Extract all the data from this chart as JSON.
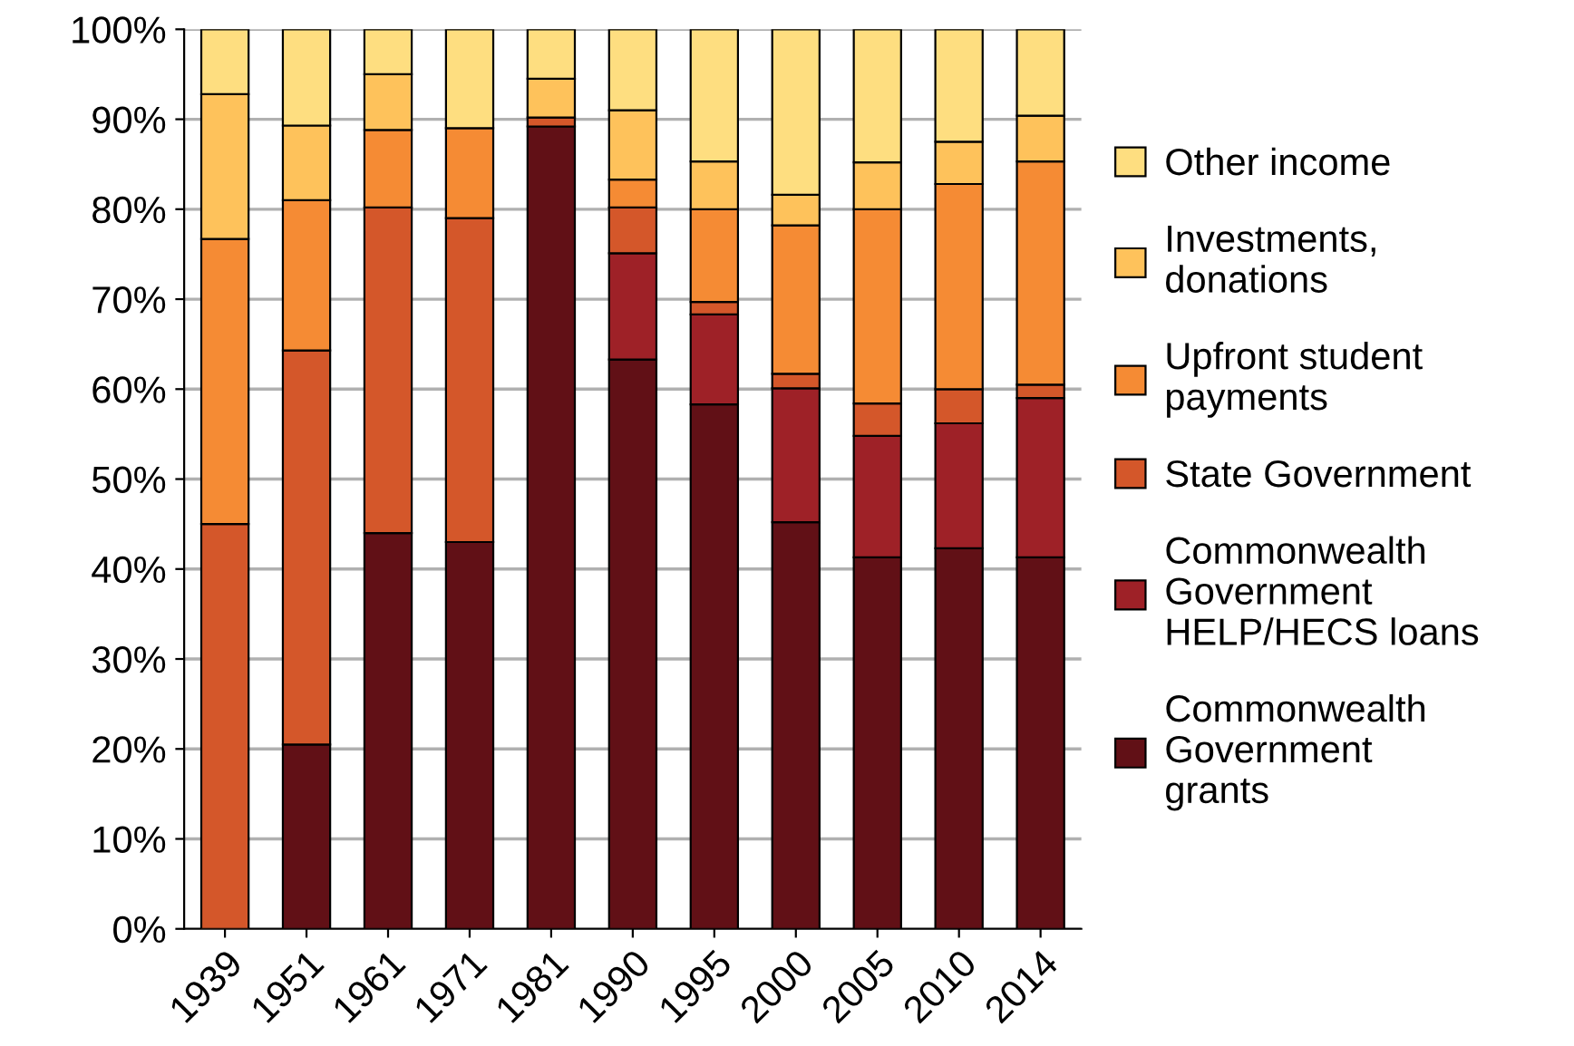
{
  "chart_data": {
    "type": "bar",
    "stacked": true,
    "categories": [
      "1939",
      "1951",
      "1961",
      "1971",
      "1981",
      "1990",
      "1995",
      "2000",
      "2005",
      "2010",
      "2014"
    ],
    "series": [
      {
        "name": "Commonwealth\nGovernment\ngrants",
        "color": "#611016",
        "values": [
          0,
          20.5,
          44,
          43,
          89.2,
          63.3,
          58.3,
          45.2,
          41.3,
          42.3,
          41.3
        ]
      },
      {
        "name": "Commonwealth\nGovernment\nHELP/HECS loans",
        "color": "#9e2127",
        "values": [
          0,
          0,
          0,
          0,
          0,
          11.8,
          10,
          14.9,
          13.5,
          13.9,
          17.7
        ]
      },
      {
        "name": "State Government",
        "color": "#d4572a",
        "values": [
          45,
          43.8,
          36.2,
          36,
          1,
          5.1,
          1.4,
          1.6,
          3.6,
          3.8,
          1.5
        ]
      },
      {
        "name": "Upfront student\npayments",
        "color": "#f58b34",
        "values": [
          31.7,
          16.7,
          8.6,
          10,
          0,
          3.1,
          10.3,
          16.5,
          21.6,
          22.8,
          24.8
        ]
      },
      {
        "name": "Investments,\ndonations",
        "color": "#fec25b",
        "values": [
          16.1,
          8.3,
          6.2,
          0,
          4.3,
          7.7,
          5.3,
          3.4,
          5.2,
          4.7,
          5.1
        ]
      },
      {
        "name": "Other income",
        "color": "#fede80",
        "values": [
          7.2,
          10.7,
          5,
          11,
          5.5,
          9,
          14.7,
          18.4,
          14.8,
          12.5,
          9.6
        ]
      }
    ],
    "ylim": [
      0,
      100
    ],
    "yticks": [
      {
        "value": 0,
        "label": "0%"
      },
      {
        "value": 10,
        "label": "10%"
      },
      {
        "value": 20,
        "label": "20%"
      },
      {
        "value": 30,
        "label": "30%"
      },
      {
        "value": 40,
        "label": "40%"
      },
      {
        "value": 50,
        "label": "50%"
      },
      {
        "value": 60,
        "label": "60%"
      },
      {
        "value": 70,
        "label": "70%"
      },
      {
        "value": 80,
        "label": "80%"
      },
      {
        "value": 90,
        "label": "90%"
      },
      {
        "value": 100,
        "label": "100%"
      }
    ],
    "grid": "y",
    "legend": "right"
  }
}
